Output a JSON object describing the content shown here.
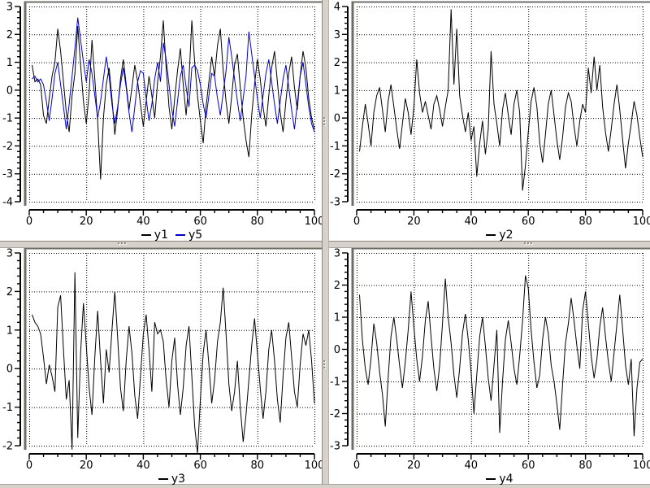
{
  "window": {
    "background": "#ffffff",
    "splitter_color": "#d6d2cb",
    "axis_color": "#000000",
    "grid_color": "#000000"
  },
  "chart_data": [
    {
      "id": "top-left",
      "type": "line",
      "x_start": 1,
      "xlim": [
        0,
        100
      ],
      "ylim": [
        -4,
        3
      ],
      "xticks": [
        0,
        20,
        40,
        60,
        80,
        100
      ],
      "yticks": [
        -4,
        -3,
        -2,
        -1,
        0,
        1,
        2,
        3
      ],
      "x_minor_step": 5,
      "y_minor_step": 0.2,
      "grid": true,
      "legend_position": "bottom-center",
      "series": [
        {
          "name": "y1",
          "color": "#000000",
          "values": [
            0.9,
            0.3,
            0.4,
            0.2,
            -0.9,
            -1.2,
            -0.3,
            0.5,
            1.0,
            2.2,
            1.4,
            0.3,
            -0.8,
            -1.5,
            -0.2,
            0.6,
            2.3,
            0.9,
            -0.4,
            -1.2,
            -0.1,
            1.8,
            0.4,
            -1.1,
            -3.2,
            -1.0,
            0.2,
            0.8,
            -0.3,
            -1.6,
            -0.7,
            0.4,
            1.1,
            0.2,
            -0.7,
            0.1,
            0.9,
            0.3,
            -0.5,
            -1.3,
            -0.4,
            0.5,
            -0.2,
            -1.0,
            0.3,
            1.2,
            2.5,
            0.8,
            -0.6,
            -1.4,
            -0.3,
            0.7,
            1.5,
            0.2,
            -0.9,
            0.4,
            2.5,
            1.0,
            -0.2,
            -1.1,
            -1.9,
            -0.6,
            0.3,
            1.2,
            0.5,
            1.6,
            2.2,
            0.7,
            -0.4,
            -1.2,
            -0.2,
            0.9,
            1.3,
            0.1,
            -1.0,
            -1.8,
            -2.4,
            -0.9,
            0.2,
            1.1,
            0.4,
            -0.6,
            -1.3,
            -0.2,
            0.8,
            1.4,
            0.3,
            -0.8,
            -1.5,
            -0.4,
            0.6,
            1.2,
            0.1,
            -0.7,
            0.5,
            1.4,
            0.8,
            -0.3,
            -1.0,
            -1.4
          ]
        },
        {
          "name": "y5",
          "color": "#0000cc",
          "values": [
            0.4,
            0.5,
            0.3,
            0.4,
            0.2,
            -0.4,
            -1.1,
            -0.3,
            0.6,
            1.0,
            0.2,
            -0.6,
            -1.4,
            -0.5,
            0.5,
            1.5,
            2.6,
            1.8,
            1.0,
            0.3,
            1.1,
            0.6,
            -0.2,
            -1.0,
            -0.4,
            0.4,
            1.2,
            0.5,
            -0.5,
            -1.2,
            -0.6,
            0.2,
            0.8,
            0.1,
            -0.8,
            -1.5,
            -0.6,
            0.3,
            0.7,
            0.6,
            -0.3,
            -1.1,
            -0.5,
            0.4,
            1.0,
            0.3,
            1.7,
            1.1,
            0.2,
            -0.7,
            -1.3,
            -0.4,
            0.5,
            0.9,
            0.1,
            -0.6,
            0.8,
            0.9,
            0.7,
            0.2,
            -0.5,
            -1.0,
            -0.2,
            0.6,
            0.5,
            -0.3,
            -0.9,
            -0.1,
            0.7,
            1.9,
            1.2,
            0.4,
            -0.4,
            -1.1,
            -0.3,
            0.5,
            2.1,
            1.3,
            0.5,
            -0.3,
            -1.0,
            -0.2,
            0.6,
            1.1,
            0.3,
            -0.5,
            -1.2,
            -0.4,
            0.4,
            0.9,
            0.1,
            -0.7,
            -1.4,
            -0.5,
            0.5,
            1.0,
            0.2,
            -0.6,
            -1.2,
            -1.5
          ]
        }
      ]
    },
    {
      "id": "top-right",
      "type": "line",
      "x_start": 1,
      "xlim": [
        0,
        100
      ],
      "ylim": [
        -3,
        4
      ],
      "xticks": [
        0,
        20,
        40,
        60,
        80,
        100
      ],
      "yticks": [
        -3,
        -2,
        -1,
        0,
        1,
        2,
        3,
        4
      ],
      "x_minor_step": 5,
      "y_minor_step": 0.2,
      "grid": true,
      "legend_position": "bottom-center",
      "series": [
        {
          "name": "y2",
          "color": "#000000",
          "values": [
            -1.2,
            -0.3,
            0.5,
            -0.2,
            -1.0,
            0.2,
            0.8,
            1.1,
            0.3,
            -0.5,
            0.6,
            1.2,
            0.4,
            -0.4,
            -1.1,
            -0.2,
            0.7,
            0.2,
            -0.6,
            0.4,
            2.1,
            0.9,
            0.2,
            0.6,
            0.1,
            -0.4,
            0.5,
            0.8,
            0.3,
            -0.3,
            0.4,
            1.0,
            3.9,
            1.2,
            3.2,
            0.8,
            0.1,
            -0.5,
            0.2,
            -0.8,
            -0.3,
            -2.1,
            -0.9,
            -0.1,
            -1.3,
            -0.4,
            2.4,
            0.5,
            -0.2,
            -1.0,
            0.3,
            0.9,
            0.1,
            -0.6,
            0.5,
            1.0,
            0.2,
            -2.6,
            -1.7,
            -0.5,
            0.6,
            1.1,
            0.4,
            -0.9,
            -1.6,
            -0.6,
            0.5,
            1.0,
            0.1,
            -0.8,
            -1.5,
            -0.7,
            0.4,
            0.9,
            0.6,
            -0.3,
            -1.0,
            -0.1,
            0.5,
            0.2,
            1.8,
            0.9,
            2.2,
            1.0,
            1.9,
            0.4,
            -0.5,
            -1.2,
            -0.4,
            0.5,
            1.2,
            0.3,
            -0.8,
            -1.8,
            -0.9,
            -0.2,
            0.6,
            0.1,
            -0.7,
            -1.4
          ]
        }
      ]
    },
    {
      "id": "bottom-left",
      "type": "line",
      "x_start": 1,
      "xlim": [
        0,
        100
      ],
      "ylim": [
        -2,
        3
      ],
      "xticks": [
        0,
        20,
        40,
        60,
        80,
        100
      ],
      "yticks": [
        -2,
        -1,
        0,
        1,
        2,
        3
      ],
      "x_minor_step": 5,
      "y_minor_step": 0.2,
      "grid": true,
      "legend_position": "bottom-center",
      "series": [
        {
          "name": "y3",
          "color": "#000000",
          "values": [
            1.4,
            1.2,
            1.1,
            0.9,
            0.3,
            -0.4,
            0.1,
            -0.2,
            -0.6,
            1.6,
            1.9,
            0.5,
            -0.8,
            -0.3,
            -2.1,
            2.5,
            -1.8,
            0.4,
            1.7,
            0.6,
            -0.5,
            -1.2,
            0.3,
            1.5,
            0.2,
            -0.9,
            0.5,
            -0.1,
            1.0,
            2.0,
            0.8,
            -0.5,
            -1.1,
            0.2,
            1.1,
            0.4,
            -0.7,
            -1.3,
            -0.2,
            0.9,
            1.4,
            0.5,
            -0.6,
            1.2,
            0.9,
            1.0,
            0.7,
            -0.3,
            -1.0,
            0.2,
            0.8,
            -0.4,
            -1.2,
            -0.5,
            0.6,
            1.1,
            -0.2,
            -1.5,
            -2.2,
            -0.8,
            0.4,
            1.0,
            0.1,
            -0.9,
            -0.3,
            0.7,
            1.2,
            2.1,
            0.9,
            -0.4,
            -1.1,
            -0.6,
            0.2,
            -1.0,
            -1.9,
            -1.2,
            -0.3,
            0.6,
            1.3,
            0.4,
            -0.5,
            -1.3,
            -0.6,
            0.5,
            1.0,
            0.2,
            -0.8,
            -1.4,
            -0.2,
            0.8,
            1.2,
            0.3,
            -0.6,
            -1.0,
            0.1,
            0.9,
            0.6,
            1.0,
            0.2,
            -0.9
          ]
        }
      ]
    },
    {
      "id": "bottom-right",
      "type": "line",
      "x_start": 1,
      "xlim": [
        0,
        100
      ],
      "ylim": [
        -3,
        3
      ],
      "xticks": [
        0,
        20,
        40,
        60,
        80,
        100
      ],
      "yticks": [
        -3,
        -2,
        -1,
        0,
        1,
        2,
        3
      ],
      "x_minor_step": 5,
      "y_minor_step": 0.2,
      "grid": true,
      "legend_position": "bottom-center",
      "series": [
        {
          "name": "y4",
          "color": "#000000",
          "values": [
            1.7,
            0.3,
            -0.6,
            -1.1,
            -0.3,
            0.8,
            0.2,
            -0.7,
            -1.4,
            -2.4,
            -0.9,
            0.4,
            1.0,
            0.3,
            -0.5,
            -1.2,
            -0.4,
            0.6,
            1.8,
            0.7,
            -0.3,
            -1.0,
            -0.2,
            0.9,
            1.5,
            0.4,
            -0.6,
            -1.3,
            -0.5,
            0.8,
            2.2,
            1.0,
            0.2,
            -0.8,
            -1.5,
            -0.6,
            0.5,
            1.1,
            0.3,
            -0.7,
            -2.0,
            -0.8,
            0.4,
            1.0,
            0.1,
            -0.9,
            -1.6,
            -0.5,
            0.6,
            -2.6,
            -1.0,
            0.3,
            0.9,
            0.2,
            -0.6,
            -1.1,
            -0.2,
            0.9,
            2.3,
            1.9,
            0.6,
            -0.4,
            -1.2,
            -0.8,
            0.3,
            1.0,
            0.5,
            -0.5,
            -1.0,
            -1.7,
            -2.5,
            -1.1,
            0.2,
            0.8,
            1.6,
            0.9,
            0.1,
            -0.6,
            1.2,
            1.8,
            0.8,
            -0.2,
            -0.9,
            -0.3,
            0.7,
            1.3,
            0.4,
            -0.4,
            -1.0,
            -0.1,
            0.8,
            1.7,
            0.6,
            -0.5,
            -1.1,
            -0.3,
            -2.7,
            -1.2,
            -0.4,
            -0.3
          ]
        }
      ]
    }
  ]
}
